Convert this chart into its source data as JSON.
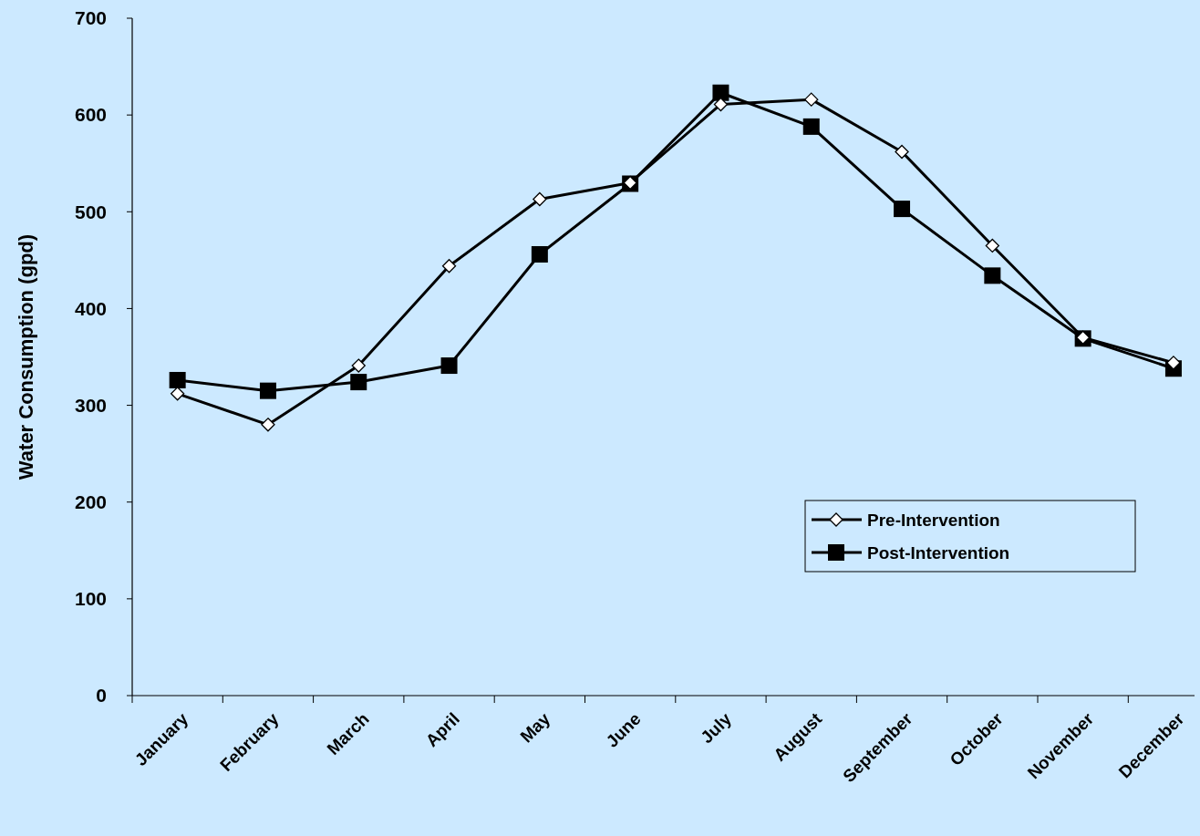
{
  "chart_data": {
    "type": "line",
    "ylabel": "Water Consumption (gpd)",
    "categories": [
      "January",
      "February",
      "March",
      "April",
      "May",
      "June",
      "July",
      "August",
      "September",
      "October",
      "November",
      "December"
    ],
    "series": [
      {
        "name": "Pre-Intervention",
        "color": "#000000",
        "marker": "diamond",
        "values": [
          312,
          280,
          341,
          444,
          513,
          530,
          611,
          616,
          562,
          465,
          370,
          344
        ]
      },
      {
        "name": "Post-Intervention",
        "color": "#000000",
        "marker": "square",
        "values": [
          326,
          315,
          324,
          341,
          456,
          529,
          623,
          588,
          503,
          434,
          369,
          338
        ]
      }
    ],
    "ylim": [
      0,
      700
    ],
    "yticks": [
      0,
      100,
      200,
      300,
      400,
      500,
      600,
      700
    ],
    "grid": false,
    "legend": "bottom right",
    "line_style": "solid"
  }
}
